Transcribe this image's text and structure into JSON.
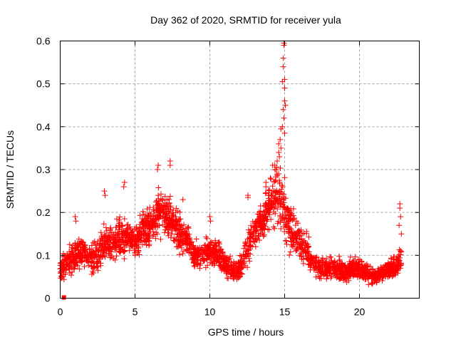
{
  "chart_data": {
    "type": "scatter",
    "title": "Day 362 of 2020, SRMTID for receiver yula",
    "xlabel": "GPS time / hours",
    "ylabel": "SRMTID / TECUs",
    "xlim": [
      0,
      24
    ],
    "ylim": [
      0,
      0.6
    ],
    "xticks": [
      0,
      5,
      10,
      15,
      20
    ],
    "xtick_labels": [
      "0",
      "5",
      "10",
      "15",
      "20"
    ],
    "yticks": [
      0,
      0.1,
      0.2,
      0.3,
      0.4,
      0.5,
      0.6
    ],
    "ytick_labels": [
      "0",
      "0.1",
      "0.2",
      "0.3",
      "0.4",
      "0.5",
      "0.6"
    ],
    "grid": true,
    "marker": "plus",
    "color": "#ff0000",
    "legend": "none",
    "outliers": [
      {
        "x": 0.25,
        "y": 0.0
      }
    ],
    "trend": {
      "description": "Approximate local center and spread of the dense scatter cloud (values read from gridlines)",
      "x": [
        0.0,
        0.5,
        1.0,
        1.5,
        2.0,
        2.5,
        3.0,
        3.5,
        4.0,
        4.5,
        5.0,
        5.5,
        6.0,
        6.5,
        7.0,
        7.5,
        8.0,
        8.5,
        9.0,
        9.5,
        10.0,
        10.5,
        11.0,
        11.5,
        12.0,
        12.5,
        13.0,
        13.5,
        14.0,
        14.5,
        15.0,
        15.5,
        16.0,
        16.5,
        17.0,
        17.5,
        18.0,
        18.5,
        19.0,
        19.5,
        20.0,
        20.5,
        21.0,
        21.5,
        22.0,
        22.5,
        22.8
      ],
      "center": [
        0.07,
        0.08,
        0.1,
        0.11,
        0.09,
        0.1,
        0.13,
        0.12,
        0.14,
        0.14,
        0.13,
        0.16,
        0.17,
        0.19,
        0.2,
        0.18,
        0.15,
        0.14,
        0.1,
        0.1,
        0.11,
        0.1,
        0.08,
        0.06,
        0.07,
        0.11,
        0.16,
        0.18,
        0.22,
        0.25,
        0.2,
        0.15,
        0.13,
        0.11,
        0.08,
        0.07,
        0.07,
        0.07,
        0.06,
        0.07,
        0.07,
        0.06,
        0.05,
        0.06,
        0.07,
        0.07,
        0.1
      ],
      "spread": [
        0.03,
        0.04,
        0.05,
        0.04,
        0.04,
        0.05,
        0.06,
        0.05,
        0.06,
        0.04,
        0.04,
        0.05,
        0.05,
        0.06,
        0.06,
        0.06,
        0.05,
        0.05,
        0.04,
        0.04,
        0.04,
        0.04,
        0.03,
        0.03,
        0.03,
        0.05,
        0.05,
        0.05,
        0.07,
        0.1,
        0.09,
        0.06,
        0.05,
        0.04,
        0.03,
        0.03,
        0.03,
        0.03,
        0.03,
        0.03,
        0.03,
        0.03,
        0.02,
        0.02,
        0.03,
        0.03,
        0.05
      ]
    },
    "peak_points": [
      {
        "x": 14.95,
        "y": 0.59
      },
      {
        "x": 14.95,
        "y": 0.595
      },
      {
        "x": 14.9,
        "y": 0.56
      },
      {
        "x": 14.9,
        "y": 0.54
      },
      {
        "x": 15.0,
        "y": 0.51
      },
      {
        "x": 14.85,
        "y": 0.505
      },
      {
        "x": 15.0,
        "y": 0.49
      },
      {
        "x": 15.0,
        "y": 0.46
      },
      {
        "x": 14.9,
        "y": 0.44
      },
      {
        "x": 15.05,
        "y": 0.45
      },
      {
        "x": 14.95,
        "y": 0.42
      },
      {
        "x": 14.85,
        "y": 0.4
      },
      {
        "x": 14.75,
        "y": 0.395
      },
      {
        "x": 15.0,
        "y": 0.385
      },
      {
        "x": 14.7,
        "y": 0.37
      },
      {
        "x": 14.6,
        "y": 0.36
      },
      {
        "x": 14.75,
        "y": 0.35
      },
      {
        "x": 14.65,
        "y": 0.33
      },
      {
        "x": 14.5,
        "y": 0.32
      },
      {
        "x": 14.2,
        "y": 0.31
      },
      {
        "x": 14.35,
        "y": 0.3
      },
      {
        "x": 14.6,
        "y": 0.29
      },
      {
        "x": 14.05,
        "y": 0.28
      },
      {
        "x": 14.4,
        "y": 0.275
      },
      {
        "x": 13.75,
        "y": 0.27
      },
      {
        "x": 13.75,
        "y": 0.26
      },
      {
        "x": 14.25,
        "y": 0.25
      },
      {
        "x": 13.95,
        "y": 0.24
      },
      {
        "x": 14.3,
        "y": 0.23
      },
      {
        "x": 14.7,
        "y": 0.22
      },
      {
        "x": 14.15,
        "y": 0.22
      },
      {
        "x": 13.9,
        "y": 0.21
      },
      {
        "x": 12.55,
        "y": 0.24
      },
      {
        "x": 12.55,
        "y": 0.235
      },
      {
        "x": 22.7,
        "y": 0.22
      },
      {
        "x": 22.7,
        "y": 0.21
      },
      {
        "x": 22.75,
        "y": 0.19
      },
      {
        "x": 22.65,
        "y": 0.17
      },
      {
        "x": 22.8,
        "y": 0.15
      },
      {
        "x": 4.3,
        "y": 0.27
      },
      {
        "x": 4.25,
        "y": 0.26
      },
      {
        "x": 6.55,
        "y": 0.31
      },
      {
        "x": 6.5,
        "y": 0.3
      },
      {
        "x": 7.35,
        "y": 0.32
      },
      {
        "x": 7.35,
        "y": 0.31
      },
      {
        "x": 2.95,
        "y": 0.25
      },
      {
        "x": 3.0,
        "y": 0.24
      },
      {
        "x": 1.0,
        "y": 0.19
      },
      {
        "x": 1.05,
        "y": 0.18
      },
      {
        "x": 8.2,
        "y": 0.23
      },
      {
        "x": 10.0,
        "y": 0.19
      },
      {
        "x": 10.05,
        "y": 0.18
      }
    ]
  }
}
